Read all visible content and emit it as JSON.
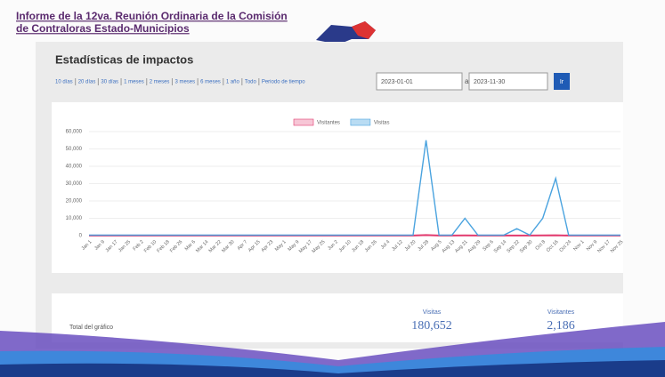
{
  "header": {
    "title_line1": "Informe de la 12va. Reunión Ordinaria de la Comisión",
    "title_line2": "de Contraloras Estado-Municipios"
  },
  "panel_title": "Estadísticas de impactos",
  "controls": {
    "links": [
      "10 días",
      "20 días",
      "30 días",
      "1 meses",
      "2 meses",
      "3 meses",
      "6 meses",
      "1 año",
      "Todo",
      "Periodo de tiempo"
    ],
    "start": "2023-01-01",
    "separator": "a",
    "end": "2023-11-30",
    "button": "Ir"
  },
  "chart_data": {
    "type": "line",
    "categories": [
      "Jan 1",
      "Jan 9",
      "Jan 17",
      "Jan 25",
      "Feb 2",
      "Feb 10",
      "Feb 18",
      "Feb 26",
      "Mar 6",
      "Mar 14",
      "Mar 22",
      "Mar 30",
      "Apr 7",
      "Apr 15",
      "Apr 23",
      "May 1",
      "May 9",
      "May 17",
      "May 25",
      "Jun 2",
      "Jun 10",
      "Jun 18",
      "Jun 26",
      "Jul 4",
      "Jul 12",
      "Jul 20",
      "Jul 28",
      "Aug 5",
      "Aug 13",
      "Aug 21",
      "Aug 29",
      "Sep 6",
      "Sep 14",
      "Sep 22",
      "Sep 30",
      "Oct 8",
      "Oct 16",
      "Oct 24",
      "Nov 1",
      "Nov 9",
      "Nov 17",
      "Nov 25"
    ],
    "series": [
      {
        "name": "Visitantes",
        "color": "#e23a6e",
        "legend_fill": "#f7c6d6",
        "values": [
          60,
          60,
          60,
          60,
          60,
          60,
          60,
          60,
          60,
          60,
          60,
          60,
          60,
          60,
          60,
          60,
          60,
          60,
          60,
          60,
          60,
          60,
          60,
          60,
          60,
          60,
          300,
          60,
          60,
          100,
          60,
          60,
          60,
          80,
          60,
          100,
          200,
          60,
          60,
          60,
          60,
          60
        ]
      },
      {
        "name": "Visitas",
        "color": "#4aa3df",
        "legend_fill": "#b9dcf3",
        "values": [
          300,
          300,
          300,
          300,
          300,
          300,
          300,
          300,
          300,
          300,
          300,
          300,
          300,
          300,
          300,
          300,
          300,
          300,
          300,
          300,
          300,
          300,
          300,
          300,
          300,
          300,
          55000,
          300,
          300,
          10000,
          300,
          300,
          300,
          4000,
          300,
          10000,
          33000,
          300,
          300,
          300,
          300,
          300
        ]
      }
    ],
    "ylim": [
      0,
      60000
    ],
    "yticks": [
      0,
      {
        "value": 10000,
        "label": "10,000"
      },
      {
        "value": 20000,
        "label": "20,000"
      },
      {
        "value": 30000,
        "label": "30,000"
      },
      {
        "value": 40000,
        "label": "40,000"
      },
      {
        "value": 50000,
        "label": "50,000"
      },
      {
        "value": 60000,
        "label": "60,000"
      }
    ],
    "grid": true
  },
  "totals": {
    "label": "Total del gráfico",
    "visits_label": "Visitas",
    "visits": "180,652",
    "visitors_label": "Visitantes",
    "visitors": "2,186"
  }
}
